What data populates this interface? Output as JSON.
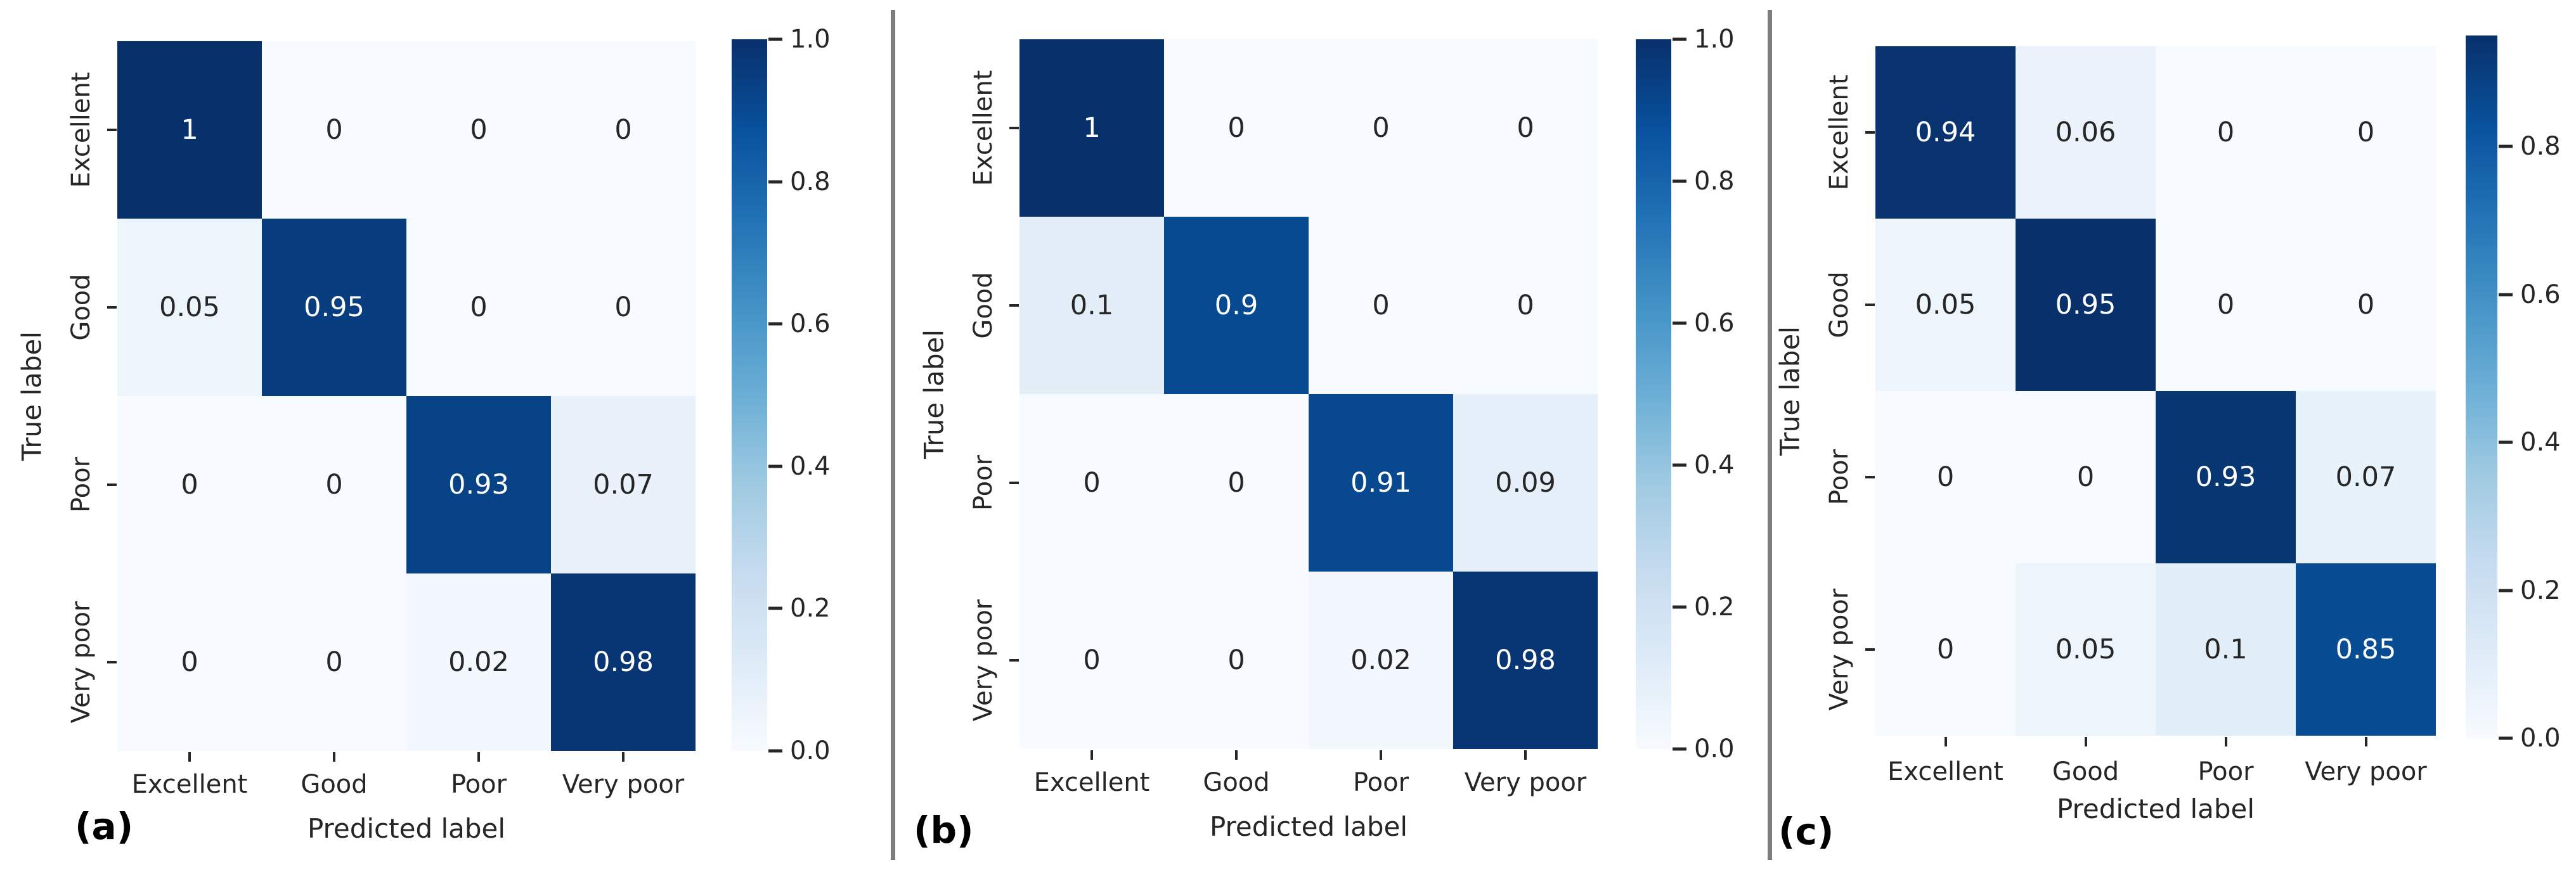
{
  "figure_type": "confusion-matrix-comparison",
  "axis": {
    "x_label": "Predicted label",
    "y_label": "True label"
  },
  "classes": [
    "Excellent",
    "Good",
    "Poor",
    "Very poor"
  ],
  "colors": {
    "colormap_name": "Blues",
    "colormap_anchors": [
      "#f7fbff",
      "#deebf7",
      "#c6dbef",
      "#9ecae1",
      "#6baed6",
      "#4292c6",
      "#2171b5",
      "#08519c",
      "#08306b"
    ],
    "annotation_text_dark": "#262626",
    "annotation_text_light": "#ffffff",
    "tick_text": "#262626",
    "panel_letter_text": "#000000",
    "divider": "#7d7d7d",
    "background": "#ffffff"
  },
  "chart_data": [
    {
      "type": "heatmap",
      "panel_label": "(a)",
      "x_categories": [
        "Excellent",
        "Good",
        "Poor",
        "Very poor"
      ],
      "y_categories": [
        "Excellent",
        "Good",
        "Poor",
        "Very poor"
      ],
      "xlabel": "Predicted label",
      "ylabel": "True label",
      "matrix": [
        [
          1,
          0,
          0,
          0
        ],
        [
          0.05,
          0.95,
          0,
          0
        ],
        [
          0,
          0,
          0.93,
          0.07
        ],
        [
          0,
          0,
          0.02,
          0.98
        ]
      ],
      "vmin": 0,
      "vmax": 1.0,
      "colorbar_ticks": [
        {
          "v": 1.0,
          "label": "1.0"
        },
        {
          "v": 0.8,
          "label": "0.8"
        },
        {
          "v": 0.6,
          "label": "0.6"
        },
        {
          "v": 0.4,
          "label": "0.4"
        },
        {
          "v": 0.2,
          "label": "0.2"
        },
        {
          "v": 0.0,
          "label": "0.0"
        }
      ]
    },
    {
      "type": "heatmap",
      "panel_label": "(b)",
      "x_categories": [
        "Excellent",
        "Good",
        "Poor",
        "Very poor"
      ],
      "y_categories": [
        "Excellent",
        "Good",
        "Poor",
        "Very poor"
      ],
      "xlabel": "Predicted label",
      "ylabel": "True label",
      "matrix": [
        [
          1,
          0,
          0,
          0
        ],
        [
          0.1,
          0.9,
          0,
          0
        ],
        [
          0,
          0,
          0.91,
          0.09
        ],
        [
          0,
          0,
          0.02,
          0.98
        ]
      ],
      "vmin": 0,
      "vmax": 1.0,
      "colorbar_ticks": [
        {
          "v": 1.0,
          "label": "1.0"
        },
        {
          "v": 0.8,
          "label": "0.8"
        },
        {
          "v": 0.6,
          "label": "0.6"
        },
        {
          "v": 0.4,
          "label": "0.4"
        },
        {
          "v": 0.2,
          "label": "0.2"
        },
        {
          "v": 0.0,
          "label": "0.0"
        }
      ]
    },
    {
      "type": "heatmap",
      "panel_label": "(c)",
      "x_categories": [
        "Excellent",
        "Good",
        "Poor",
        "Very poor"
      ],
      "y_categories": [
        "Excellent",
        "Good",
        "Poor",
        "Very poor"
      ],
      "xlabel": "Predicted label",
      "ylabel": "True label",
      "matrix": [
        [
          0.94,
          0.06,
          0,
          0
        ],
        [
          0.05,
          0.95,
          0,
          0
        ],
        [
          0,
          0,
          0.93,
          0.07
        ],
        [
          0,
          0.05,
          0.1,
          0.85
        ]
      ],
      "vmin": 0,
      "vmax": 0.95,
      "colorbar_ticks": [
        {
          "v": 0.8,
          "label": "0.8"
        },
        {
          "v": 0.6,
          "label": "0.6"
        },
        {
          "v": 0.4,
          "label": "0.4"
        },
        {
          "v": 0.2,
          "label": "0.2"
        },
        {
          "v": 0.0,
          "label": "0.0"
        }
      ]
    }
  ]
}
